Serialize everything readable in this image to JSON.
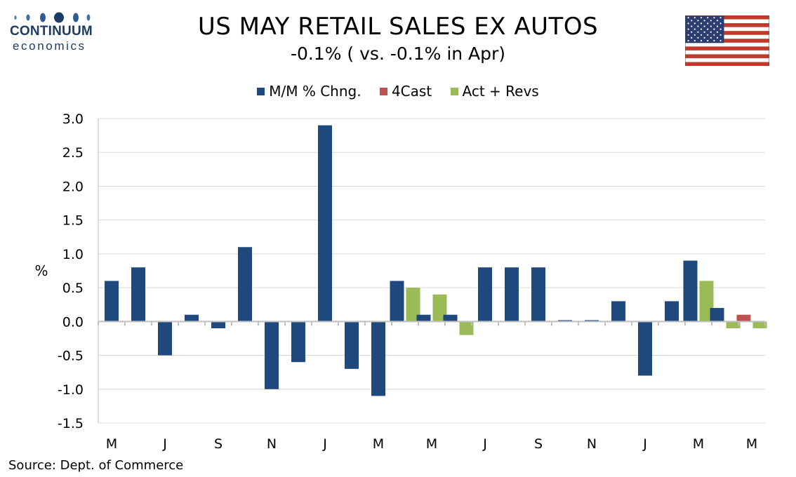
{
  "logo": {
    "name": "CONTINUUM",
    "sub": "economics"
  },
  "header": {
    "title": "US MAY RETAIL SALES EX AUTOS",
    "subtitle": "-0.1% ( vs. -0.1% in Apr)"
  },
  "flag": {
    "icon": "us-flag-icon"
  },
  "colors": {
    "mm": "#1f497d",
    "fcast": "#c0504d",
    "act": "#9bbb59",
    "grid": "#d9d9d9",
    "axis": "#bfbfbf"
  },
  "chart_data": {
    "type": "bar",
    "ylabel": "%",
    "ylim": [
      -1.5,
      3.0
    ],
    "yticks": [
      "3.0",
      "2.5",
      "2.0",
      "1.5",
      "1.0",
      "0.5",
      "0.0",
      "-0.5",
      "-1.0",
      "-1.5"
    ],
    "ytick_values": [
      3.0,
      2.5,
      2.0,
      1.5,
      1.0,
      0.5,
      0.0,
      -0.5,
      -1.0,
      -1.5
    ],
    "grid": true,
    "legend_position": "top",
    "xtick_labels": [
      "M",
      "J",
      "S",
      "N",
      "J",
      "M",
      "M",
      "J",
      "S",
      "N",
      "J",
      "M",
      "M"
    ],
    "xtick_every": 2,
    "series": [
      {
        "name": "M/M % Chng.",
        "values": [
          0.6,
          0.8,
          -0.5,
          0.1,
          -0.1,
          1.1,
          -1.0,
          -0.6,
          2.9,
          -0.7,
          -1.1,
          0.6,
          0.1,
          0.1,
          0.8,
          0.8,
          0.8,
          0.02,
          0.02,
          0.3,
          -0.8,
          0.3,
          0.9,
          0.2,
          null
        ]
      },
      {
        "name": "4Cast",
        "values": [
          null,
          null,
          null,
          null,
          null,
          null,
          null,
          null,
          null,
          null,
          null,
          null,
          null,
          null,
          null,
          null,
          null,
          null,
          null,
          null,
          null,
          null,
          null,
          null,
          0.1
        ]
      },
      {
        "name": "Act + Revs",
        "values": [
          null,
          null,
          null,
          null,
          null,
          null,
          null,
          null,
          null,
          null,
          null,
          0.5,
          0.4,
          -0.2,
          null,
          null,
          null,
          null,
          null,
          null,
          null,
          null,
          0.6,
          -0.1,
          -0.1
        ]
      }
    ]
  },
  "footer": {
    "source": "Source: Dept. of Commerce"
  }
}
